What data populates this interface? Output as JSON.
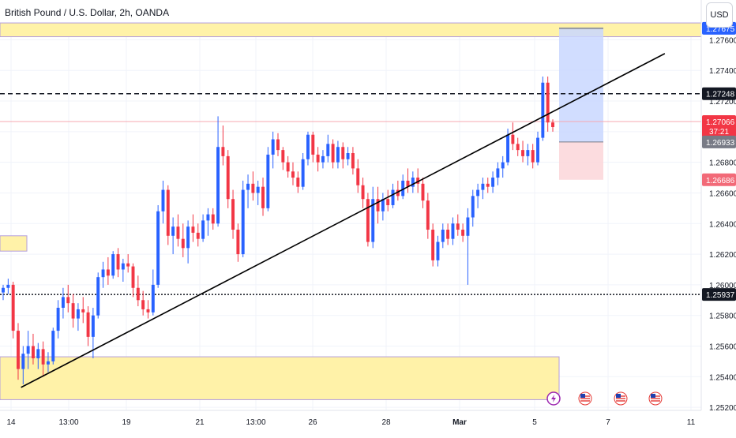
{
  "header": {
    "title": "British Pound / U.S. Dollar, 2h, OANDA",
    "currency": "USD"
  },
  "colors": {
    "up": "#2962ff",
    "down": "#f23645",
    "zone": "#fff2a8",
    "zone_border": "#b39ddb",
    "target": "#c9d7ff",
    "stop": "#fcd8dc"
  },
  "chart_data": {
    "type": "candlestick",
    "title": "British Pound / U.S. Dollar, 2h, OANDA",
    "ylim": [
      1.2518,
      1.277
    ],
    "y_ticks": [
      "1.27600",
      "1.27400",
      "1.27200",
      "1.27000",
      "1.26800",
      "1.26600",
      "1.26400",
      "1.26200",
      "1.26000",
      "1.25800",
      "1.25600",
      "1.25400",
      "1.25200"
    ],
    "x_labels": [
      "14",
      "13:00",
      "19",
      "21",
      "13:00",
      "26",
      "28",
      "Mar",
      "5",
      "7",
      "11"
    ],
    "price_labels": [
      {
        "value": "1.27675",
        "style": "blue"
      },
      {
        "value": "1.27248",
        "style": "black"
      },
      {
        "value": "1.27066",
        "style": "red",
        "sub": "37:21"
      },
      {
        "value": "1.26933",
        "style": "gray"
      },
      {
        "value": "1.26686",
        "style": "lightred"
      },
      {
        "value": "1.25937",
        "style": "black"
      }
    ],
    "zones": [
      {
        "from": 1.2762,
        "to": 1.2771
      },
      {
        "from": 1.2525,
        "to": 1.2553
      },
      {
        "from": 1.2622,
        "to": 1.2632
      }
    ],
    "horizontal_lines": [
      {
        "y": 1.27248,
        "style": "dashed"
      },
      {
        "y": 1.25937,
        "style": "dotted"
      },
      {
        "y": 1.27066,
        "style": "current"
      }
    ],
    "trendline": {
      "from": [
        0.03,
        1.2533
      ],
      "to": [
        0.903,
        1.2751
      ]
    },
    "position": {
      "entry": 1.26933,
      "target": 1.27675,
      "stop": 1.26686
    },
    "events": [
      "lightning",
      "us-flag",
      "us-flag",
      "us-flag"
    ],
    "candles": [
      [
        1.2595,
        1.26,
        1.259,
        1.2598
      ],
      [
        1.2598,
        1.2604,
        1.2594,
        1.26
      ],
      [
        1.26,
        1.2602,
        1.2565,
        1.257
      ],
      [
        1.257,
        1.2575,
        1.2538,
        1.2545
      ],
      [
        1.2545,
        1.256,
        1.2535,
        1.2555
      ],
      [
        1.2555,
        1.257,
        1.2545,
        1.256
      ],
      [
        1.256,
        1.2568,
        1.2548,
        1.2552
      ],
      [
        1.2552,
        1.2562,
        1.2545,
        1.2558
      ],
      [
        1.2558,
        1.2563,
        1.254,
        1.2548
      ],
      [
        1.2548,
        1.2556,
        1.2543,
        1.255
      ],
      [
        1.255,
        1.2572,
        1.2548,
        1.257
      ],
      [
        1.257,
        1.259,
        1.2565,
        1.2585
      ],
      [
        1.2585,
        1.2598,
        1.2578,
        1.2592
      ],
      [
        1.2592,
        1.26,
        1.2582,
        1.2588
      ],
      [
        1.2588,
        1.2594,
        1.2572,
        1.2578
      ],
      [
        1.2578,
        1.2588,
        1.257,
        1.2584
      ],
      [
        1.2584,
        1.2592,
        1.2575,
        1.2582
      ],
      [
        1.2582,
        1.2586,
        1.256,
        1.2566
      ],
      [
        1.2566,
        1.2585,
        1.2552,
        1.258
      ],
      [
        1.258,
        1.2608,
        1.2578,
        1.2605
      ],
      [
        1.2605,
        1.2615,
        1.2598,
        1.261
      ],
      [
        1.261,
        1.2618,
        1.26,
        1.2606
      ],
      [
        1.2606,
        1.2622,
        1.2604,
        1.262
      ],
      [
        1.262,
        1.2624,
        1.2605,
        1.261
      ],
      [
        1.261,
        1.2617,
        1.2602,
        1.2614
      ],
      [
        1.2614,
        1.262,
        1.2608,
        1.2612
      ],
      [
        1.2612,
        1.2614,
        1.2592,
        1.2598
      ],
      [
        1.2598,
        1.2606,
        1.2586,
        1.259
      ],
      [
        1.259,
        1.2596,
        1.258,
        1.2584
      ],
      [
        1.2584,
        1.259,
        1.2578,
        1.2582
      ],
      [
        1.2582,
        1.261,
        1.258,
        1.26
      ],
      [
        1.26,
        1.2652,
        1.2598,
        1.2648
      ],
      [
        1.2648,
        1.2668,
        1.264,
        1.2662
      ],
      [
        1.2662,
        1.2665,
        1.2626,
        1.2632
      ],
      [
        1.2632,
        1.2644,
        1.262,
        1.2638
      ],
      [
        1.2638,
        1.2646,
        1.2625,
        1.263
      ],
      [
        1.263,
        1.264,
        1.2618,
        1.2624
      ],
      [
        1.2624,
        1.2642,
        1.2614,
        1.2638
      ],
      [
        1.2638,
        1.2646,
        1.2628,
        1.2634
      ],
      [
        1.2634,
        1.264,
        1.2625,
        1.263
      ],
      [
        1.263,
        1.2646,
        1.2628,
        1.2642
      ],
      [
        1.2642,
        1.265,
        1.2632,
        1.2646
      ],
      [
        1.2646,
        1.265,
        1.2636,
        1.264
      ],
      [
        1.264,
        1.271,
        1.2638,
        1.269
      ],
      [
        1.269,
        1.2704,
        1.2678,
        1.2684
      ],
      [
        1.2684,
        1.2688,
        1.265,
        1.2656
      ],
      [
        1.2656,
        1.2662,
        1.263,
        1.2636
      ],
      [
        1.2636,
        1.264,
        1.2615,
        1.262
      ],
      [
        1.262,
        1.2668,
        1.2618,
        1.2662
      ],
      [
        1.2662,
        1.2672,
        1.265,
        1.2666
      ],
      [
        1.2666,
        1.2674,
        1.2655,
        1.266
      ],
      [
        1.266,
        1.2668,
        1.2652,
        1.2664
      ],
      [
        1.2664,
        1.267,
        1.2645,
        1.265
      ],
      [
        1.265,
        1.269,
        1.2648,
        1.2685
      ],
      [
        1.2685,
        1.27,
        1.2676,
        1.2695
      ],
      [
        1.2695,
        1.2699,
        1.2684,
        1.2688
      ],
      [
        1.2688,
        1.269,
        1.2675,
        1.268
      ],
      [
        1.268,
        1.2684,
        1.267,
        1.2674
      ],
      [
        1.2674,
        1.268,
        1.2665,
        1.267
      ],
      [
        1.267,
        1.2674,
        1.266,
        1.2664
      ],
      [
        1.2664,
        1.2686,
        1.2662,
        1.2682
      ],
      [
        1.2682,
        1.27,
        1.2678,
        1.2698
      ],
      [
        1.2698,
        1.27,
        1.268,
        1.2685
      ],
      [
        1.2685,
        1.269,
        1.2674,
        1.268
      ],
      [
        1.268,
        1.2688,
        1.2676,
        1.2684
      ],
      [
        1.2684,
        1.2698,
        1.268,
        1.2692
      ],
      [
        1.2692,
        1.2695,
        1.2676,
        1.268
      ],
      [
        1.268,
        1.2694,
        1.2676,
        1.269
      ],
      [
        1.269,
        1.2693,
        1.2676,
        1.2682
      ],
      [
        1.2682,
        1.269,
        1.2678,
        1.2686
      ],
      [
        1.2686,
        1.269,
        1.2672,
        1.2676
      ],
      [
        1.2676,
        1.2682,
        1.266,
        1.2665
      ],
      [
        1.2665,
        1.267,
        1.265,
        1.2656
      ],
      [
        1.2656,
        1.266,
        1.2625,
        1.2628
      ],
      [
        1.2628,
        1.2664,
        1.2624,
        1.2656
      ],
      [
        1.2656,
        1.2664,
        1.264,
        1.2648
      ],
      [
        1.2648,
        1.266,
        1.2642,
        1.2656
      ],
      [
        1.2656,
        1.2662,
        1.2648,
        1.2652
      ],
      [
        1.2652,
        1.2666,
        1.265,
        1.2662
      ],
      [
        1.2662,
        1.2668,
        1.2655,
        1.2658
      ],
      [
        1.2658,
        1.2672,
        1.2656,
        1.2668
      ],
      [
        1.2668,
        1.2676,
        1.266,
        1.2664
      ],
      [
        1.2664,
        1.2674,
        1.266,
        1.267
      ],
      [
        1.267,
        1.2676,
        1.266,
        1.2666
      ],
      [
        1.2666,
        1.267,
        1.265,
        1.2655
      ],
      [
        1.2655,
        1.266,
        1.263,
        1.2636
      ],
      [
        1.2636,
        1.264,
        1.2612,
        1.2616
      ],
      [
        1.2616,
        1.2632,
        1.2612,
        1.2628
      ],
      [
        1.2628,
        1.264,
        1.2624,
        1.2636
      ],
      [
        1.2636,
        1.264,
        1.2626,
        1.263
      ],
      [
        1.263,
        1.2644,
        1.2626,
        1.264
      ],
      [
        1.264,
        1.2646,
        1.2632,
        1.2636
      ],
      [
        1.2636,
        1.264,
        1.2628,
        1.2632
      ],
      [
        1.2632,
        1.265,
        1.26,
        1.2644
      ],
      [
        1.2644,
        1.2662,
        1.2638,
        1.2658
      ],
      [
        1.2658,
        1.2666,
        1.265,
        1.2662
      ],
      [
        1.2662,
        1.267,
        1.2656,
        1.2666
      ],
      [
        1.2666,
        1.267,
        1.266,
        1.2664
      ],
      [
        1.2664,
        1.2674,
        1.266,
        1.267
      ],
      [
        1.267,
        1.268,
        1.2665,
        1.2676
      ],
      [
        1.2676,
        1.2684,
        1.267,
        1.268
      ],
      [
        1.268,
        1.2702,
        1.2678,
        1.2698
      ],
      [
        1.2698,
        1.2706,
        1.2688,
        1.2692
      ],
      [
        1.2692,
        1.2696,
        1.2684,
        1.2688
      ],
      [
        1.2688,
        1.2694,
        1.268,
        1.2684
      ],
      [
        1.2684,
        1.2692,
        1.2678,
        1.2688
      ],
      [
        1.2688,
        1.2692,
        1.2676,
        1.268
      ],
      [
        1.268,
        1.27,
        1.2678,
        1.2696
      ],
      [
        1.2696,
        1.2736,
        1.2694,
        1.2732
      ],
      [
        1.2732,
        1.2736,
        1.27,
        1.2706
      ],
      [
        1.2706,
        1.2708,
        1.27,
        1.2703
      ]
    ]
  }
}
